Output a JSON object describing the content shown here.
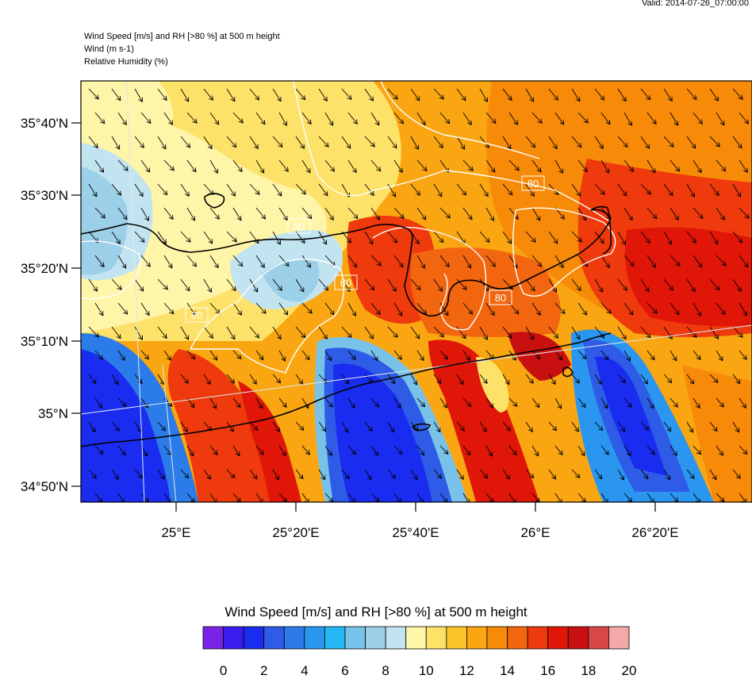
{
  "valid_label": "Valid: 2014-07-26_07:00:00",
  "header": {
    "line1": "Wind Speed [m/s] and RH [>80 %] at 500 m height",
    "line2": "Wind   (m s-1)",
    "line3": "Relative Humidity   (%)"
  },
  "lat_labels": [
    "35°40'N",
    "35°30'N",
    "35°20'N",
    "35°10'N",
    "35°N",
    "34°50'N"
  ],
  "lon_labels": [
    "25°E",
    "25°20'E",
    "25°40'E",
    "26°E",
    "26°20'E"
  ],
  "rh_contour_labels": [
    "80",
    "80",
    "80",
    "80",
    "80"
  ],
  "colorbar": {
    "title": "Wind Speed [m/s] and RH [>80 %] at 500 m height",
    "tick_labels": [
      "0",
      "2",
      "4",
      "6",
      "8",
      "10",
      "12",
      "14",
      "16",
      "18",
      "20"
    ],
    "colors": [
      "#7b22e8",
      "#3b1cf0",
      "#1a2cf0",
      "#2f5ce6",
      "#2b7be8",
      "#2a96f0",
      "#24b8f4",
      "#78c2ea",
      "#9ccfe8",
      "#c2e4f0",
      "#fff5a8",
      "#fde26a",
      "#fbc52a",
      "#f9a612",
      "#f78a08",
      "#f36610",
      "#ee3a0c",
      "#e01608",
      "#c81010",
      "#d84848",
      "#f4a8a8"
    ]
  }
}
